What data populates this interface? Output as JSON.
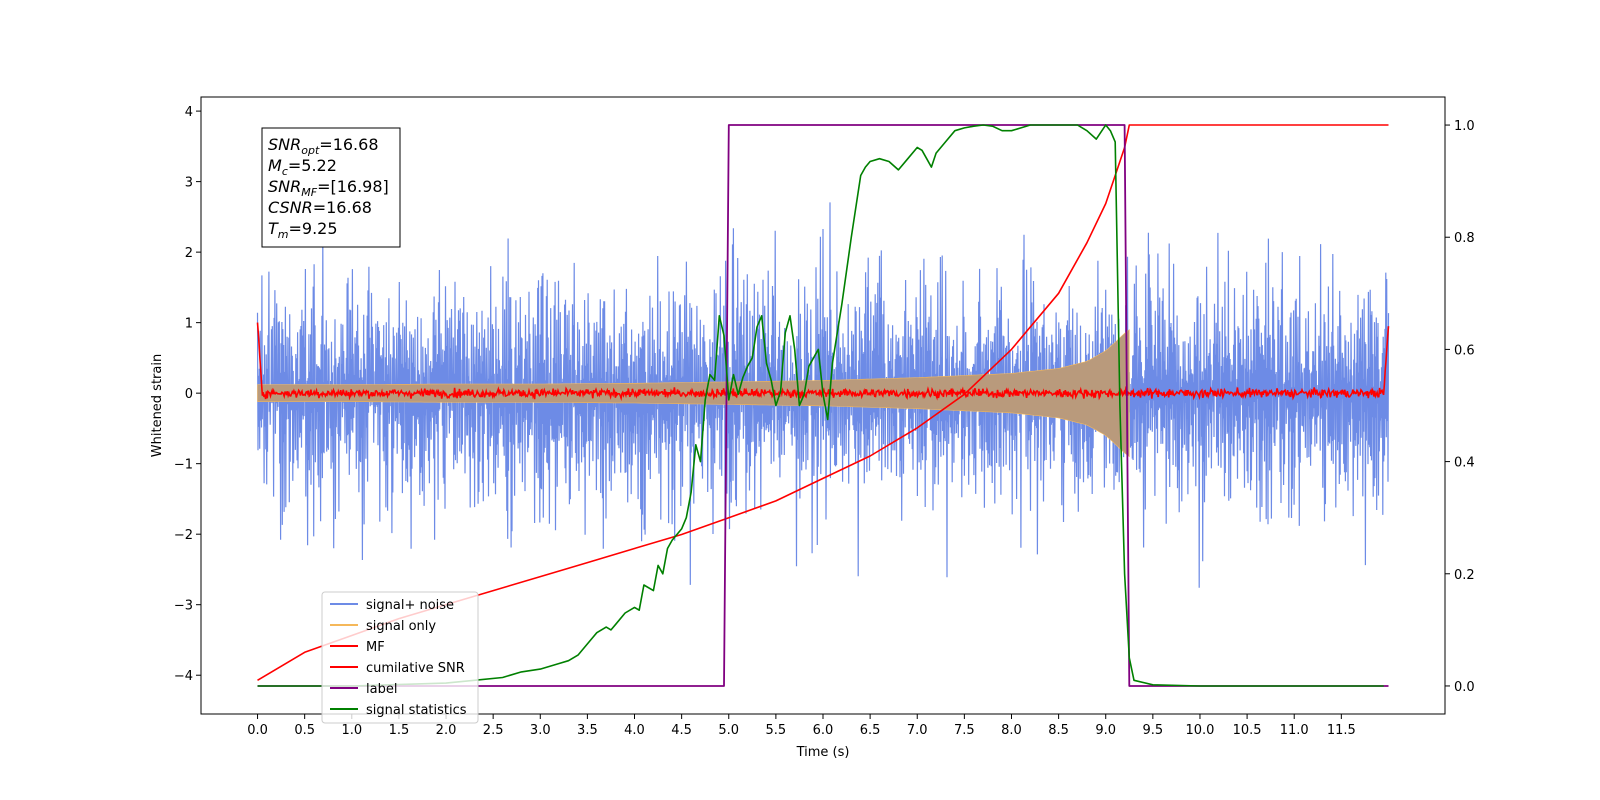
{
  "chart_data": {
    "type": "line",
    "title": "",
    "xlabel": "Time (s)",
    "ylabel": "Whitened strain",
    "y2label": "",
    "xlim": [
      -0.6,
      12.6
    ],
    "ylim": [
      -4.55,
      4.2
    ],
    "y2lim": [
      -0.05,
      1.05
    ],
    "xticks": [
      "0.0",
      "0.5",
      "1.0",
      "1.5",
      "2.0",
      "2.5",
      "3.0",
      "3.5",
      "4.0",
      "4.5",
      "5.0",
      "5.5",
      "6.0",
      "6.5",
      "7.0",
      "7.5",
      "8.0",
      "8.5",
      "9.0",
      "9.5",
      "10.0",
      "10.5",
      "11.0",
      "11.5"
    ],
    "yticks": [
      "4",
      "3",
      "2",
      "1",
      "0",
      "−1",
      "−2",
      "−3",
      "−4"
    ],
    "y2ticks": [
      "0.0",
      "0.2",
      "0.4",
      "0.6",
      "0.8",
      "1.0"
    ],
    "grid": false,
    "legend_position": "lower-left",
    "colors": {
      "signal_noise": "#6d8be6",
      "signal_only": "#f5b85a",
      "overlap": "#b99a7c",
      "mf": "#ff0000",
      "cumulative": "#ff0000",
      "label": "#800080",
      "stats": "#008000"
    },
    "info_box": {
      "lines": [
        {
          "main": "SNR",
          "sub": "opt",
          "value": "=16.68"
        },
        {
          "main": "M",
          "sub": "c",
          "value": "=5.22"
        },
        {
          "main": "SNR",
          "sub": "MF",
          "value": "=[16.98]"
        },
        {
          "main": "CSNR",
          "sub": "",
          "value": "=16.68"
        },
        {
          "main": "T",
          "sub": "m",
          "value": "=9.25"
        }
      ]
    },
    "series": [
      {
        "name": "signal+ noise",
        "axis": "left",
        "kind": "noise",
        "t_start": 0.0,
        "t_end": 12.0,
        "typical_amplitude": 1.1,
        "peak_range": [
          -4.1,
          3.85
        ]
      },
      {
        "name": "signal only",
        "axis": "left",
        "kind": "envelope",
        "x": [
          0.0,
          1.0,
          2.0,
          3.0,
          4.0,
          5.0,
          6.0,
          7.0,
          8.0,
          8.5,
          8.8,
          9.0,
          9.1,
          9.2,
          9.25
        ],
        "amplitude": [
          0.12,
          0.12,
          0.13,
          0.13,
          0.14,
          0.16,
          0.18,
          0.22,
          0.28,
          0.35,
          0.45,
          0.6,
          0.72,
          0.85,
          0.9
        ]
      },
      {
        "name": "MF",
        "axis": "left",
        "kind": "noise",
        "t_start": 0.0,
        "t_end": 12.0,
        "typical_amplitude": 0.05,
        "edge_start": 1.0,
        "edge_end": 0.95
      },
      {
        "name": "cumilative SNR",
        "axis": "right",
        "x": [
          0.0,
          0.5,
          1.0,
          1.5,
          2.0,
          2.5,
          3.0,
          3.5,
          4.0,
          4.5,
          5.0,
          5.5,
          6.0,
          6.5,
          7.0,
          7.5,
          8.0,
          8.5,
          8.8,
          9.0,
          9.1,
          9.2,
          9.25,
          12.0
        ],
        "y": [
          0.01,
          0.06,
          0.09,
          0.12,
          0.145,
          0.17,
          0.195,
          0.22,
          0.245,
          0.27,
          0.3,
          0.33,
          0.37,
          0.41,
          0.46,
          0.52,
          0.6,
          0.7,
          0.79,
          0.86,
          0.91,
          0.96,
          1.0,
          1.0
        ]
      },
      {
        "name": "label",
        "axis": "right",
        "x": [
          0.0,
          4.95,
          5.0,
          9.2,
          9.25,
          12.0
        ],
        "y": [
          0.0,
          0.0,
          1.0,
          1.0,
          0.0,
          0.0
        ]
      },
      {
        "name": "signal statistics",
        "axis": "right",
        "x": [
          0.0,
          1.0,
          2.0,
          2.3,
          2.6,
          2.8,
          3.0,
          3.2,
          3.3,
          3.4,
          3.5,
          3.6,
          3.7,
          3.75,
          3.8,
          3.9,
          4.0,
          4.05,
          4.1,
          4.2,
          4.25,
          4.3,
          4.35,
          4.4,
          4.45,
          4.5,
          4.55,
          4.6,
          4.65,
          4.7,
          4.75,
          4.8,
          4.85,
          4.9,
          4.95,
          5.0,
          5.05,
          5.1,
          5.15,
          5.2,
          5.25,
          5.3,
          5.35,
          5.4,
          5.45,
          5.5,
          5.55,
          5.6,
          5.65,
          5.7,
          5.75,
          5.8,
          5.85,
          5.9,
          5.95,
          6.0,
          6.05,
          6.1,
          6.2,
          6.3,
          6.4,
          6.45,
          6.5,
          6.6,
          6.7,
          6.8,
          6.9,
          7.0,
          7.05,
          7.1,
          7.15,
          7.2,
          7.3,
          7.4,
          7.5,
          7.6,
          7.7,
          7.8,
          7.9,
          8.0,
          8.1,
          8.2,
          8.3,
          8.5,
          8.7,
          8.8,
          8.9,
          9.0,
          9.05,
          9.1,
          9.15,
          9.2,
          9.25,
          9.3,
          9.5,
          10.0,
          11.0,
          11.95
        ],
        "y": [
          0.0,
          0.0,
          0.005,
          0.01,
          0.015,
          0.025,
          0.03,
          0.04,
          0.045,
          0.055,
          0.075,
          0.095,
          0.105,
          0.1,
          0.11,
          0.13,
          0.14,
          0.135,
          0.18,
          0.17,
          0.215,
          0.2,
          0.245,
          0.26,
          0.27,
          0.28,
          0.3,
          0.345,
          0.43,
          0.4,
          0.51,
          0.555,
          0.545,
          0.66,
          0.625,
          0.51,
          0.555,
          0.52,
          0.55,
          0.57,
          0.585,
          0.64,
          0.66,
          0.575,
          0.545,
          0.5,
          0.525,
          0.63,
          0.66,
          0.6,
          0.5,
          0.52,
          0.57,
          0.585,
          0.6,
          0.52,
          0.475,
          0.575,
          0.68,
          0.8,
          0.91,
          0.925,
          0.935,
          0.94,
          0.935,
          0.92,
          0.94,
          0.96,
          0.955,
          0.94,
          0.925,
          0.95,
          0.97,
          0.99,
          0.995,
          0.998,
          1.0,
          0.998,
          0.99,
          0.99,
          0.995,
          1.0,
          1.0,
          1.0,
          1.0,
          0.99,
          0.975,
          1.0,
          0.99,
          0.97,
          0.5,
          0.2,
          0.05,
          0.01,
          0.002,
          0.0,
          0.0,
          0.0
        ]
      }
    ]
  }
}
